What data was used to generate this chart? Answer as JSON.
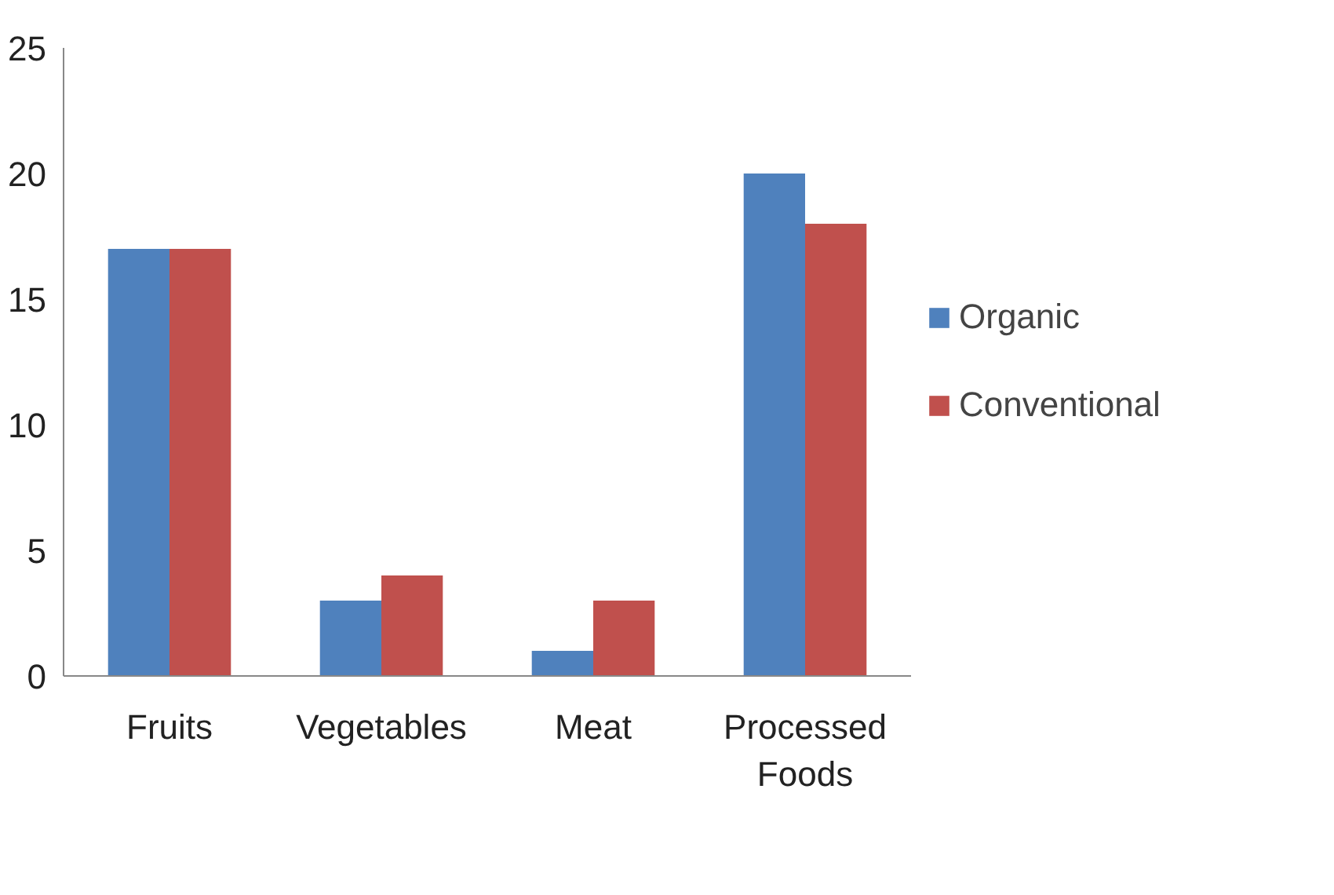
{
  "chart_data": {
    "type": "bar",
    "categories": [
      "Fruits",
      "Vegetables",
      "Meat",
      "Processed Foods"
    ],
    "series": [
      {
        "name": "Organic",
        "color": "#4f81bd",
        "values": [
          17,
          3,
          1,
          20
        ]
      },
      {
        "name": "Conventional",
        "color": "#c0504d",
        "values": [
          17,
          4,
          3,
          18
        ]
      }
    ],
    "ylim": [
      0,
      25
    ],
    "yticks": [
      0,
      5,
      10,
      15,
      20,
      25
    ],
    "grid": false,
    "legend": "right"
  }
}
